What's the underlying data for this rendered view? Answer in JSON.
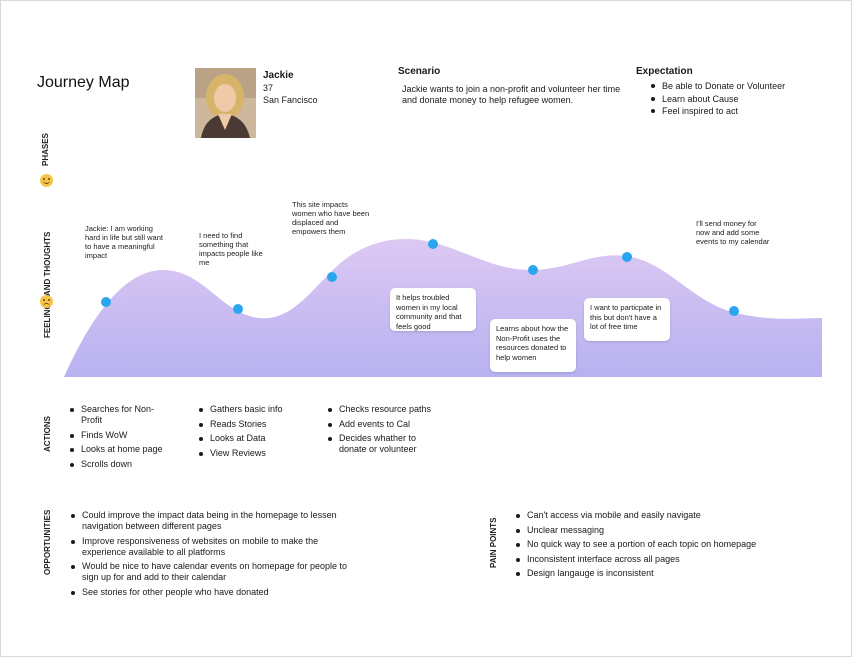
{
  "title": "Journey Map",
  "persona": {
    "name": "Jackie",
    "age": "37",
    "location": "San Fancisco"
  },
  "scenario": {
    "heading": "Scenario",
    "text": "Jackie wants to join a non-profit and volunteer her time and donate money to help refugee women."
  },
  "expectation": {
    "heading": "Expectation",
    "items": [
      "Be able to Donate or Volunteer",
      "Learn about Cause",
      "Feel inspired to act"
    ]
  },
  "row_labels": {
    "phases": "PHASES",
    "feelings": "FEELINGS AND THOUGHTS",
    "actions": "ACTIONS",
    "opportunities": "OPPORTUNITIES",
    "pain_points": "PAIN POINTS"
  },
  "thoughts": {
    "t1": "Jackie: I am working hard in life but still want to have a meaningful impact",
    "t2": "I need to find something that impacts people like me",
    "t3": "This site impacts women who have been displaced and empowers them",
    "t4": "It helps troubled women in my local community and that feels good",
    "t5": "Learns about how the Non-Profit uses the resources donated to help women",
    "t6": "I want to particpate in this but don't have a lot of free time",
    "t7": "I'll send money for now and add some events to my calendar"
  },
  "actions": {
    "col1": [
      "Searches for Non-Profit",
      "Finds WoW",
      "Looks at home page",
      "Scrolls down"
    ],
    "col2": [
      "Gathers basic info",
      "Reads Stories",
      "Looks at Data",
      "View Reviews"
    ],
    "col3": [
      "Checks resource paths",
      "Add events to Cal",
      "Decides whather to donate or volunteer"
    ]
  },
  "opportunities": [
    "Could improve the impact data being in the homepage to lessen navigation between different pages",
    "Improve responsiveness of websites on mobile to make the experience available to all platforms",
    "Would be nice to have calendar events on homepage for people to sign up for and add to their calendar",
    "See stories for other people who have donated"
  ],
  "pain_points": [
    "Can't access via mobile and easily navigate",
    "Unclear messaging",
    "No quick way to see a portion of each topic on homepage",
    "Inconsistent interface across all pages",
    "Design langauge is inconsistent"
  ],
  "colors": {
    "curve_top": "#ddc8f3",
    "curve_bottom": "#b7b2f0",
    "dot": "#2aa6f0",
    "card_shadow": "#00000026"
  }
}
